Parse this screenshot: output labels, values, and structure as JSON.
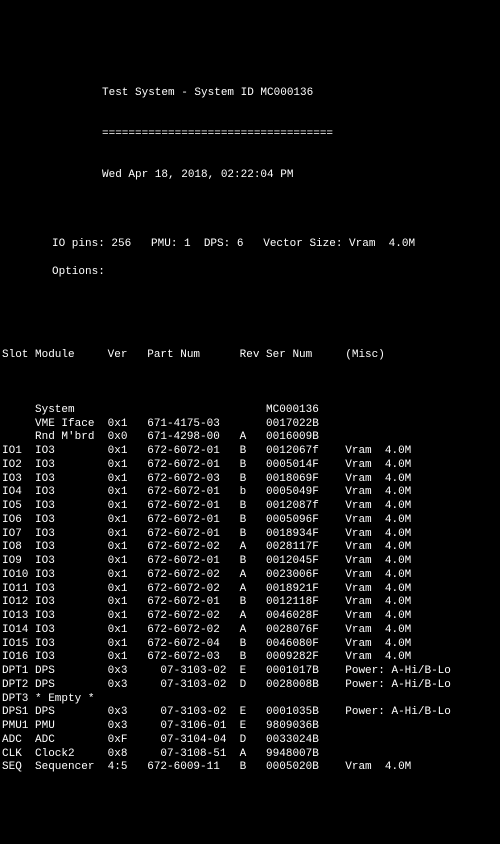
{
  "header": {
    "title": "Test System - System ID MC000136",
    "separator": "===================================",
    "datetime": "Wed Apr 18, 2018, 02:22:04 PM",
    "info1": "IO pins: 256   PMU: 1  DPS: 6   Vector Size: Vram  4.0M",
    "info2": "Options:"
  },
  "columns": {
    "slot": "Slot",
    "module": "Module",
    "ver": "Ver",
    "partnum": "Part Num",
    "rev": "Rev",
    "sernum": "Ser Num",
    "misc": "(Misc)"
  },
  "rows": [
    {
      "slot": "",
      "module": "System",
      "ver": "",
      "partnum": "",
      "rev": "",
      "sernum": "MC000136",
      "misc": ""
    },
    {
      "slot": "",
      "module": "VME Iface",
      "ver": "0x1",
      "partnum": "671-4175-03",
      "rev": "",
      "sernum": "0017022B",
      "misc": ""
    },
    {
      "slot": "",
      "module": "Rnd M'brd",
      "ver": "0x0",
      "partnum": "671-4298-00",
      "rev": "A",
      "sernum": "0016009B",
      "misc": ""
    },
    {
      "slot": "IO1",
      "module": "IO3",
      "ver": "0x1",
      "partnum": "672-6072-01",
      "rev": "B",
      "sernum": "0012067f",
      "misc": "Vram  4.0M"
    },
    {
      "slot": "IO2",
      "module": "IO3",
      "ver": "0x1",
      "partnum": "672-6072-01",
      "rev": "B",
      "sernum": "0005014F",
      "misc": "Vram  4.0M"
    },
    {
      "slot": "IO3",
      "module": "IO3",
      "ver": "0x1",
      "partnum": "672-6072-03",
      "rev": "B",
      "sernum": "0018069F",
      "misc": "Vram  4.0M"
    },
    {
      "slot": "IO4",
      "module": "IO3",
      "ver": "0x1",
      "partnum": "672-6072-01",
      "rev": "b",
      "sernum": "0005049F",
      "misc": "Vram  4.0M"
    },
    {
      "slot": "IO5",
      "module": "IO3",
      "ver": "0x1",
      "partnum": "672-6072-01",
      "rev": "B",
      "sernum": "0012087f",
      "misc": "Vram  4.0M"
    },
    {
      "slot": "IO6",
      "module": "IO3",
      "ver": "0x1",
      "partnum": "672-6072-01",
      "rev": "B",
      "sernum": "0005096F",
      "misc": "Vram  4.0M"
    },
    {
      "slot": "IO7",
      "module": "IO3",
      "ver": "0x1",
      "partnum": "672-6072-01",
      "rev": "B",
      "sernum": "0018934F",
      "misc": "Vram  4.0M"
    },
    {
      "slot": "IO8",
      "module": "IO3",
      "ver": "0x1",
      "partnum": "672-6072-02",
      "rev": "A",
      "sernum": "0028117F",
      "misc": "Vram  4.0M"
    },
    {
      "slot": "IO9",
      "module": "IO3",
      "ver": "0x1",
      "partnum": "672-6072-01",
      "rev": "B",
      "sernum": "0012045F",
      "misc": "Vram  4.0M"
    },
    {
      "slot": "IO10",
      "module": "IO3",
      "ver": "0x1",
      "partnum": "672-6072-02",
      "rev": "A",
      "sernum": "0023006F",
      "misc": "Vram  4.0M"
    },
    {
      "slot": "IO11",
      "module": "IO3",
      "ver": "0x1",
      "partnum": "672-6072-02",
      "rev": "A",
      "sernum": "0018921F",
      "misc": "Vram  4.0M"
    },
    {
      "slot": "IO12",
      "module": "IO3",
      "ver": "0x1",
      "partnum": "672-6072-01",
      "rev": "B",
      "sernum": "0012118F",
      "misc": "Vram  4.0M"
    },
    {
      "slot": "IO13",
      "module": "IO3",
      "ver": "0x1",
      "partnum": "672-6072-02",
      "rev": "A",
      "sernum": "0046028F",
      "misc": "Vram  4.0M"
    },
    {
      "slot": "IO14",
      "module": "IO3",
      "ver": "0x1",
      "partnum": "672-6072-02",
      "rev": "A",
      "sernum": "0028076F",
      "misc": "Vram  4.0M"
    },
    {
      "slot": "IO15",
      "module": "IO3",
      "ver": "0x1",
      "partnum": "672-6072-04",
      "rev": "B",
      "sernum": "0046080F",
      "misc": "Vram  4.0M"
    },
    {
      "slot": "IO16",
      "module": "IO3",
      "ver": "0x1",
      "partnum": "672-6072-03",
      "rev": "B",
      "sernum": "0009282F",
      "misc": "Vram  4.0M"
    },
    {
      "slot": "DPT1",
      "module": "DPS",
      "ver": "0x3",
      "partnum": "  07-3103-02",
      "rev": "E",
      "sernum": "0001017B",
      "misc": "Power: A-Hi/B-Lo"
    },
    {
      "slot": "DPT2",
      "module": "DPS",
      "ver": "0x3",
      "partnum": "  07-3103-02",
      "rev": "D",
      "sernum": "0028008B",
      "misc": "Power: A-Hi/B-Lo"
    },
    {
      "slot": "DPT3",
      "module": "* Empty *",
      "ver": "",
      "partnum": "",
      "rev": "",
      "sernum": "",
      "misc": ""
    },
    {
      "slot": "DPS1",
      "module": "DPS",
      "ver": "0x3",
      "partnum": "  07-3103-02",
      "rev": "E",
      "sernum": "0001035B",
      "misc": "Power: A-Hi/B-Lo"
    },
    {
      "slot": "PMU1",
      "module": "PMU",
      "ver": "0x3",
      "partnum": "  07-3106-01",
      "rev": "E",
      "sernum": "9809036B",
      "misc": ""
    },
    {
      "slot": "ADC",
      "module": "ADC",
      "ver": "0xF",
      "partnum": "  07-3104-04",
      "rev": "D",
      "sernum": "0033024B",
      "misc": ""
    },
    {
      "slot": "CLK",
      "module": "Clock2",
      "ver": "0x8",
      "partnum": "  07-3108-51",
      "rev": "A",
      "sernum": "9948007B",
      "misc": ""
    },
    {
      "slot": "SEQ",
      "module": "Sequencer",
      "ver": "4:5",
      "partnum": "672-6009-11",
      "rev": "B",
      "sernum": "0005020B",
      "misc": "Vram  4.0M"
    }
  ],
  "colwidths": {
    "slot": 5,
    "module": 11,
    "ver": 6,
    "partnum": 14,
    "rev": 4,
    "sernum": 12,
    "misc": 18
  }
}
